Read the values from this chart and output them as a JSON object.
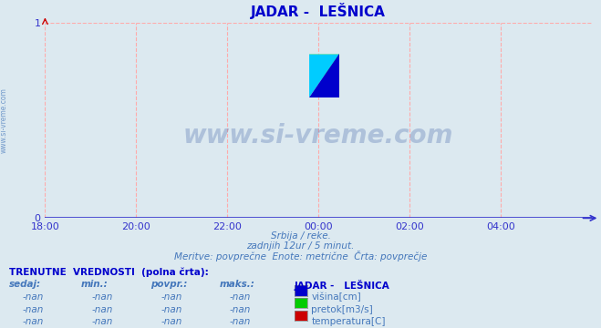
{
  "title": "JADAR -  LEŠNICA",
  "title_color": "#0000cc",
  "background_color": "#dce9f0",
  "plot_bg_color": "#dce9f0",
  "xlim": [
    0,
    144
  ],
  "ylim": [
    0,
    1
  ],
  "yticks": [
    0,
    1
  ],
  "xtick_labels": [
    "18:00",
    "20:00",
    "22:00",
    "00:00",
    "02:00",
    "04:00"
  ],
  "xtick_positions": [
    0,
    24,
    48,
    72,
    96,
    120
  ],
  "grid_color": "#ffaaaa",
  "axis_color": "#3333cc",
  "tick_color": "#3333cc",
  "watermark": "www.si-vreme.com",
  "watermark_color": "#4466aa",
  "watermark_alpha": 0.3,
  "sub1": "Srbija / reke.",
  "sub2": "zadnjih 12ur / 5 minut.",
  "sub3": "Meritve: povprečne  Enote: metrične  Črta: povprečje",
  "sub_color": "#4477bb",
  "ylabel_text": "www.si-vreme.com",
  "ylabel_color": "#4477bb",
  "table_header": "TRENUTNE  VREDNOSTI  (polna črta):",
  "table_cols": [
    "sedaj:",
    "min.:",
    "povpr.:",
    "maks.:"
  ],
  "legend_title": "JADAR -   LEŠNICA",
  "legend_items": [
    "višina[cm]",
    "pretok[m3/s]",
    "temperatura[C]"
  ],
  "legend_colors": [
    "#0000cc",
    "#00cc00",
    "#cc0000"
  ],
  "logo_yellow": "#ffff00",
  "logo_cyan": "#00ccff",
  "logo_blue": "#0000cc"
}
